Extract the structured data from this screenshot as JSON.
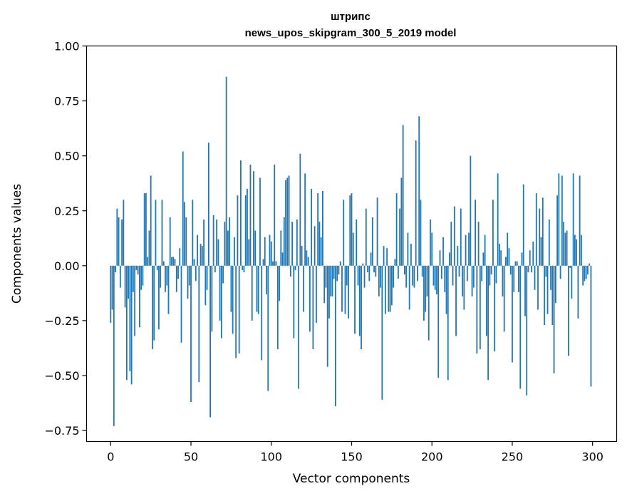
{
  "chart_data": {
    "type": "bar",
    "title_line1": "штрипс",
    "title_line2": "news_upos_skipgram_300_5_2019 model",
    "xlabel": "Vector components",
    "ylabel": "Components values",
    "xlim": [
      -15,
      315
    ],
    "ylim": [
      -0.8,
      1.0
    ],
    "xticks": [
      0,
      50,
      100,
      150,
      200,
      250,
      300
    ],
    "xtick_labels": [
      "0",
      "50",
      "100",
      "150",
      "200",
      "250",
      "300"
    ],
    "yticks": [
      -0.75,
      -0.5,
      -0.25,
      0.0,
      0.25,
      0.5,
      0.75,
      1.0
    ],
    "ytick_labels": [
      "−0.75",
      "−0.50",
      "−0.25",
      "0.00",
      "0.25",
      "0.50",
      "0.75",
      "1.00"
    ],
    "bar_color": "#1f77b4",
    "series": [
      {
        "name": "components",
        "values": [
          -0.26,
          -0.2,
          -0.73,
          -0.03,
          0.26,
          0.22,
          -0.1,
          0.21,
          0.3,
          -0.19,
          -0.52,
          -0.15,
          -0.48,
          -0.54,
          -0.12,
          -0.32,
          -0.02,
          -0.04,
          -0.28,
          -0.11,
          -0.09,
          0.33,
          0.33,
          0.04,
          0.16,
          0.41,
          -0.38,
          -0.34,
          0.3,
          -0.02,
          -0.29,
          -0.1,
          0.3,
          0.02,
          -0.12,
          -0.09,
          -0.22,
          0.22,
          0.04,
          0.04,
          0.03,
          -0.12,
          -0.06,
          0.08,
          -0.35,
          0.52,
          0.29,
          0.22,
          -0.15,
          -0.09,
          -0.62,
          0.3,
          0.03,
          -0.07,
          0.14,
          -0.53,
          0.1,
          0.09,
          0.21,
          -0.18,
          -0.11,
          0.56,
          -0.69,
          -0.3,
          0.23,
          -0.03,
          0.21,
          0.12,
          -0.25,
          -0.33,
          -0.08,
          0.2,
          0.86,
          0.16,
          0.22,
          -0.21,
          -0.31,
          0.13,
          -0.42,
          0.32,
          -0.4,
          0.48,
          -0.02,
          -0.03,
          0.32,
          0.35,
          0.12,
          0.46,
          -0.25,
          0.43,
          0.16,
          -0.21,
          -0.22,
          0.4,
          -0.43,
          0.03,
          0.13,
          -0.13,
          -0.57,
          0.14,
          0.11,
          0.02,
          0.46,
          0.02,
          -0.38,
          -0.16,
          0.16,
          0.06,
          0.22,
          0.39,
          0.4,
          0.41,
          -0.05,
          0.2,
          -0.33,
          -0.02,
          0.21,
          -0.56,
          0.51,
          0.09,
          -0.21,
          0.42,
          0.07,
          0.04,
          -0.3,
          0.35,
          -0.38,
          0.18,
          -0.26,
          0.33,
          0.2,
          0.13,
          0.34,
          -0.17,
          -0.1,
          -0.46,
          -0.24,
          -0.14,
          -0.14,
          -0.06,
          -0.64,
          -0.07,
          -0.04,
          0.02,
          -0.21,
          0.3,
          -0.22,
          -0.09,
          -0.24,
          0.32,
          0.33,
          0.15,
          -0.31,
          0.21,
          -0.09,
          -0.32,
          -0.38,
          0.01,
          -0.1,
          0.26,
          -0.03,
          -0.07,
          0.06,
          0.22,
          -0.03,
          -0.05,
          0.31,
          -0.14,
          -0.1,
          -0.61,
          0.09,
          -0.22,
          0.08,
          -0.21,
          -0.21,
          -0.18,
          -0.1,
          0.03,
          0.33,
          -0.06,
          0.26,
          0.4,
          0.64,
          -0.04,
          -0.1,
          0.15,
          -0.2,
          0.1,
          -0.09,
          -0.1,
          0.57,
          -0.07,
          0.68,
          0.3,
          -0.05,
          -0.25,
          -0.21,
          -0.14,
          -0.34,
          0.21,
          0.15,
          -0.09,
          -0.11,
          -0.13,
          -0.51,
          0.07,
          -0.06,
          0.13,
          -0.12,
          -0.22,
          -0.52,
          0.06,
          0.2,
          -0.09,
          0.27,
          -0.32,
          0.09,
          -0.05,
          0.26,
          -0.14,
          -0.2,
          0.14,
          -0.07,
          0.15,
          0.5,
          -0.14,
          -0.1,
          0.3,
          -0.4,
          0.2,
          -0.38,
          -0.07,
          0.06,
          0.14,
          -0.32,
          -0.52,
          -0.09,
          -0.04,
          0.3,
          -0.39,
          -0.08,
          0.42,
          0.1,
          0.07,
          -0.14,
          -0.3,
          0.04,
          0.15,
          0.08,
          -0.04,
          -0.44,
          -0.12,
          0.02,
          0.02,
          -0.12,
          -0.56,
          0.06,
          0.37,
          -0.23,
          -0.59,
          -0.03,
          0.07,
          -0.03,
          0.11,
          -0.11,
          0.33,
          -0.2,
          0.26,
          0.13,
          0.31,
          -0.27,
          -0.05,
          -0.22,
          0.21,
          -0.11,
          -0.27,
          -0.49,
          -0.17,
          0.32,
          0.42,
          -0.06,
          0.41,
          0.2,
          0.15,
          0.16,
          -0.41,
          -0.01,
          -0.15,
          0.42,
          0.14,
          0.12,
          -0.24,
          0.41,
          0.14,
          -0.09,
          -0.07,
          -0.06,
          -0.04,
          0.01,
          -0.55
        ]
      }
    ]
  }
}
